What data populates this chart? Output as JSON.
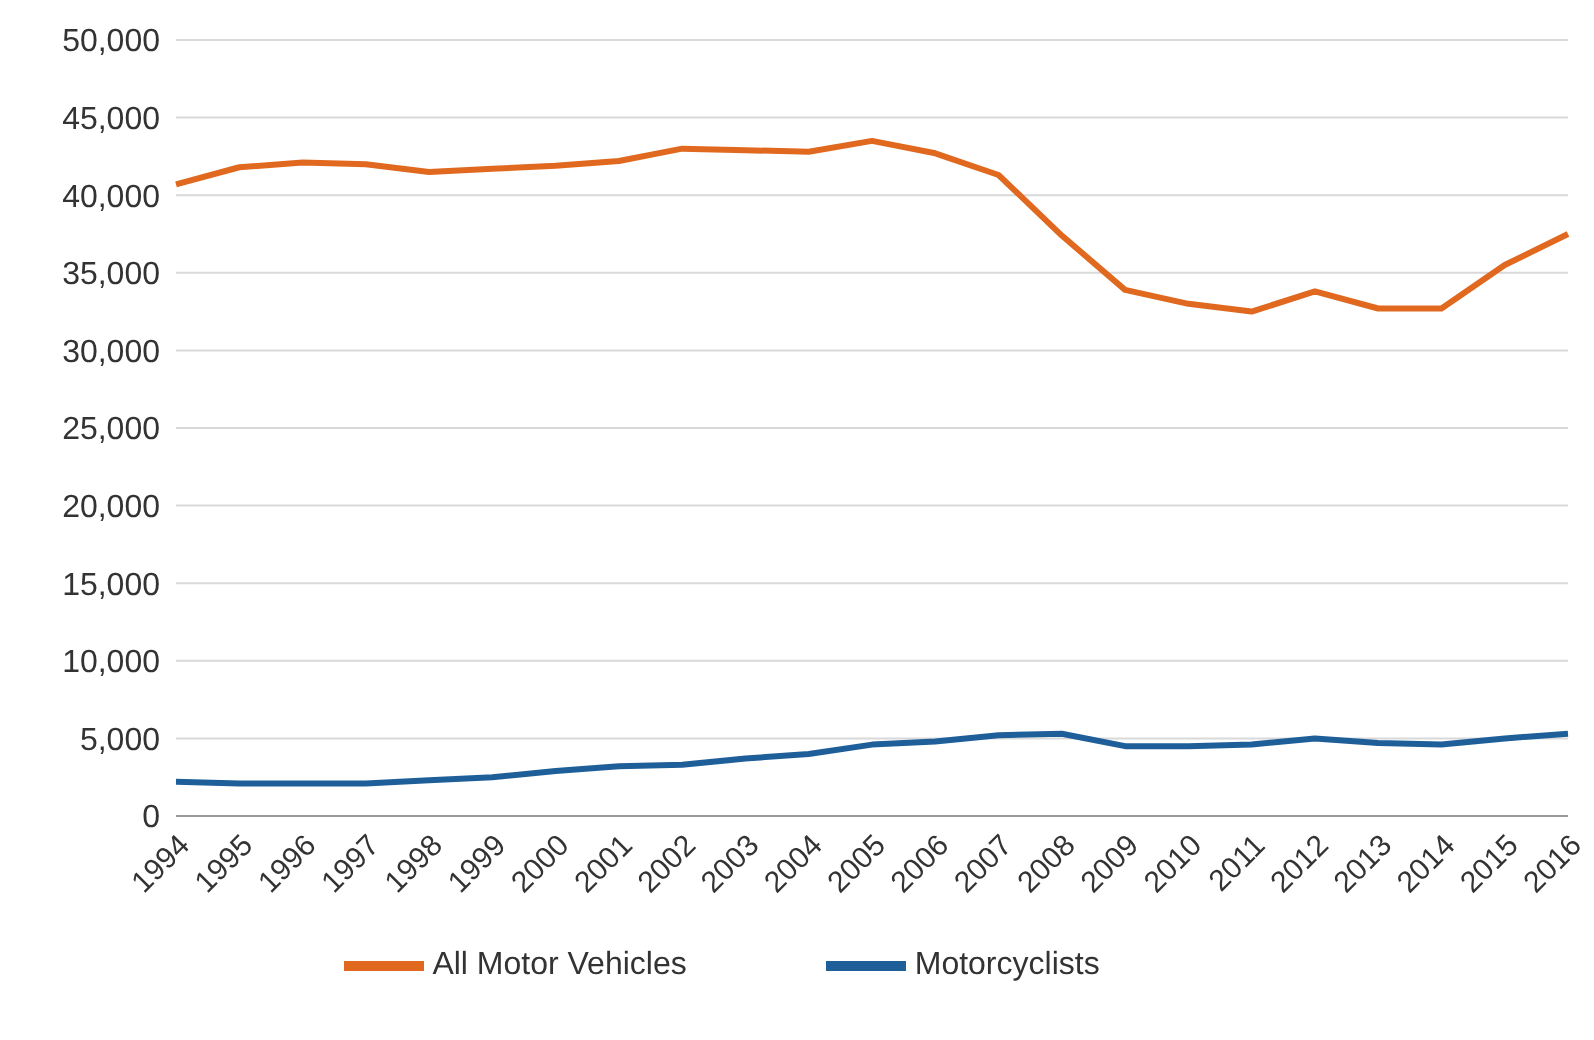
{
  "chart_data": {
    "type": "line",
    "categories": [
      "1994",
      "1995",
      "1996",
      "1997",
      "1998",
      "1999",
      "2000",
      "2001",
      "2002",
      "2003",
      "2004",
      "2005",
      "2006",
      "2007",
      "2008",
      "2009",
      "2010",
      "2011",
      "2012",
      "2013",
      "2014",
      "2015",
      "2016"
    ],
    "series": [
      {
        "name": "All Motor Vehicles",
        "color": "#e0691f",
        "values": [
          40700,
          41800,
          42100,
          42000,
          41500,
          41700,
          41900,
          42200,
          43000,
          42900,
          42800,
          43500,
          42700,
          41300,
          37400,
          33900,
          33000,
          32500,
          33800,
          32700,
          32700,
          35500,
          37500
        ]
      },
      {
        "name": "Motorcyclists",
        "color": "#1f5f99",
        "values": [
          2200,
          2100,
          2100,
          2100,
          2300,
          2500,
          2900,
          3200,
          3300,
          3700,
          4000,
          4600,
          4800,
          5200,
          5300,
          4500,
          4500,
          4600,
          5000,
          4700,
          4600,
          5000,
          5300
        ]
      }
    ],
    "ylim": [
      0,
      50000
    ],
    "yticks": [
      {
        "value": 0,
        "label": "0"
      },
      {
        "value": 5000,
        "label": "5,000"
      },
      {
        "value": 10000,
        "label": "10,000"
      },
      {
        "value": 15000,
        "label": "15,000"
      },
      {
        "value": 20000,
        "label": "20,000"
      },
      {
        "value": 25000,
        "label": "25,000"
      },
      {
        "value": 30000,
        "label": "30,000"
      },
      {
        "value": 35000,
        "label": "35,000"
      },
      {
        "value": 40000,
        "label": "40,000"
      },
      {
        "value": 45000,
        "label": "45,000"
      },
      {
        "value": 50000,
        "label": "50,000"
      }
    ],
    "grid": "y",
    "legend": "bottom",
    "marker": "none",
    "line_style": "solid"
  }
}
